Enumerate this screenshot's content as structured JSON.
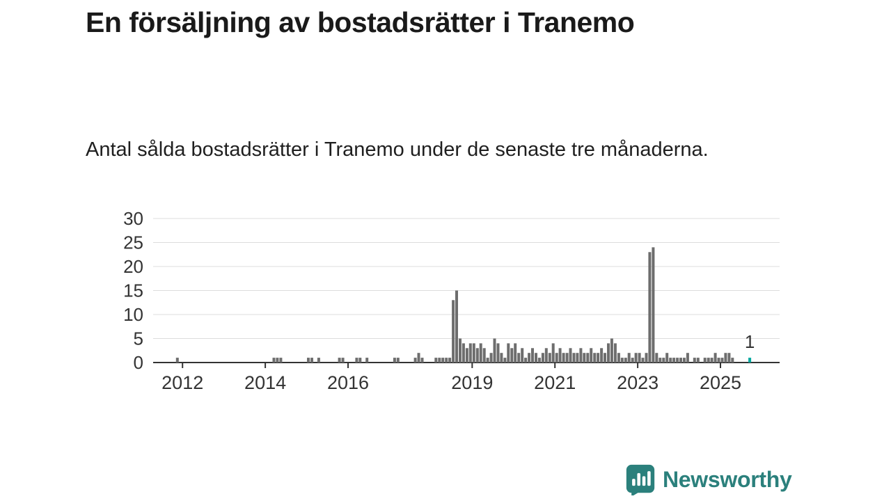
{
  "header": {
    "title": "En försäljning av bostadsrätter i Tranemo",
    "subtitle": "Antal sålda bostadsrätter i Tranemo under de senaste tre månaderna."
  },
  "footer": {
    "brand": "Newsworthy"
  },
  "colors": {
    "bar": "#6d6d6d",
    "highlight": "#00a89e",
    "gridline": "#dcdcdc",
    "axis": "#333333",
    "text": "#333333",
    "brand_teal": "#2b807c"
  },
  "chart_data": {
    "type": "bar",
    "title": "En försäljning av bostadsrätter i Tranemo",
    "xlabel": "",
    "ylabel": "",
    "ylim": [
      0,
      30
    ],
    "yticks": [
      0,
      5,
      10,
      15,
      20,
      25,
      30
    ],
    "xticks": [
      2012,
      2014,
      2016,
      2019,
      2021,
      2023,
      2025
    ],
    "x_domain": [
      2011.29,
      2026.43
    ],
    "grid": true,
    "legend": "none",
    "annotation": {
      "text": "1"
    },
    "highlight_last": true,
    "points": [
      [
        "2011-11",
        1
      ],
      [
        "2014-03",
        1
      ],
      [
        "2014-04",
        1
      ],
      [
        "2014-05",
        1
      ],
      [
        "2015-01",
        1
      ],
      [
        "2015-02",
        1
      ],
      [
        "2015-04",
        1
      ],
      [
        "2015-10",
        1
      ],
      [
        "2015-11",
        1
      ],
      [
        "2016-03",
        1
      ],
      [
        "2016-04",
        1
      ],
      [
        "2016-06",
        1
      ],
      [
        "2017-02",
        1
      ],
      [
        "2017-03",
        1
      ],
      [
        "2017-08",
        1
      ],
      [
        "2017-09",
        2
      ],
      [
        "2017-10",
        1
      ],
      [
        "2018-02",
        1
      ],
      [
        "2018-03",
        1
      ],
      [
        "2018-04",
        1
      ],
      [
        "2018-05",
        1
      ],
      [
        "2018-06",
        1
      ],
      [
        "2018-07",
        13
      ],
      [
        "2018-08",
        15
      ],
      [
        "2018-09",
        5
      ],
      [
        "2018-10",
        4
      ],
      [
        "2018-11",
        3
      ],
      [
        "2018-12",
        4
      ],
      [
        "2019-01",
        4
      ],
      [
        "2019-02",
        3
      ],
      [
        "2019-03",
        4
      ],
      [
        "2019-04",
        3
      ],
      [
        "2019-05",
        1
      ],
      [
        "2019-06",
        2
      ],
      [
        "2019-07",
        5
      ],
      [
        "2019-08",
        4
      ],
      [
        "2019-09",
        2
      ],
      [
        "2019-10",
        1
      ],
      [
        "2019-11",
        4
      ],
      [
        "2019-12",
        3
      ],
      [
        "2020-01",
        4
      ],
      [
        "2020-02",
        2
      ],
      [
        "2020-03",
        3
      ],
      [
        "2020-04",
        1
      ],
      [
        "2020-05",
        2
      ],
      [
        "2020-06",
        3
      ],
      [
        "2020-07",
        2
      ],
      [
        "2020-08",
        1
      ],
      [
        "2020-09",
        2
      ],
      [
        "2020-10",
        3
      ],
      [
        "2020-11",
        2
      ],
      [
        "2020-12",
        4
      ],
      [
        "2021-01",
        2
      ],
      [
        "2021-02",
        3
      ],
      [
        "2021-03",
        2
      ],
      [
        "2021-04",
        2
      ],
      [
        "2021-05",
        3
      ],
      [
        "2021-06",
        2
      ],
      [
        "2021-07",
        2
      ],
      [
        "2021-08",
        3
      ],
      [
        "2021-09",
        2
      ],
      [
        "2021-10",
        2
      ],
      [
        "2021-11",
        3
      ],
      [
        "2021-12",
        2
      ],
      [
        "2022-01",
        2
      ],
      [
        "2022-02",
        3
      ],
      [
        "2022-03",
        2
      ],
      [
        "2022-04",
        4
      ],
      [
        "2022-05",
        5
      ],
      [
        "2022-06",
        4
      ],
      [
        "2022-07",
        2
      ],
      [
        "2022-08",
        1
      ],
      [
        "2022-09",
        1
      ],
      [
        "2022-10",
        2
      ],
      [
        "2022-11",
        1
      ],
      [
        "2022-12",
        2
      ],
      [
        "2023-01",
        2
      ],
      [
        "2023-02",
        1
      ],
      [
        "2023-03",
        2
      ],
      [
        "2023-04",
        23
      ],
      [
        "2023-05",
        24
      ],
      [
        "2023-06",
        2
      ],
      [
        "2023-07",
        1
      ],
      [
        "2023-08",
        1
      ],
      [
        "2023-09",
        2
      ],
      [
        "2023-10",
        1
      ],
      [
        "2023-11",
        1
      ],
      [
        "2023-12",
        1
      ],
      [
        "2024-01",
        1
      ],
      [
        "2024-02",
        1
      ],
      [
        "2024-03",
        2
      ],
      [
        "2024-05",
        1
      ],
      [
        "2024-06",
        1
      ],
      [
        "2024-08",
        1
      ],
      [
        "2024-09",
        1
      ],
      [
        "2024-10",
        1
      ],
      [
        "2024-11",
        2
      ],
      [
        "2024-12",
        1
      ],
      [
        "2025-01",
        1
      ],
      [
        "2025-02",
        2
      ],
      [
        "2025-03",
        2
      ],
      [
        "2025-04",
        1
      ],
      [
        "2025-09",
        1
      ]
    ]
  }
}
